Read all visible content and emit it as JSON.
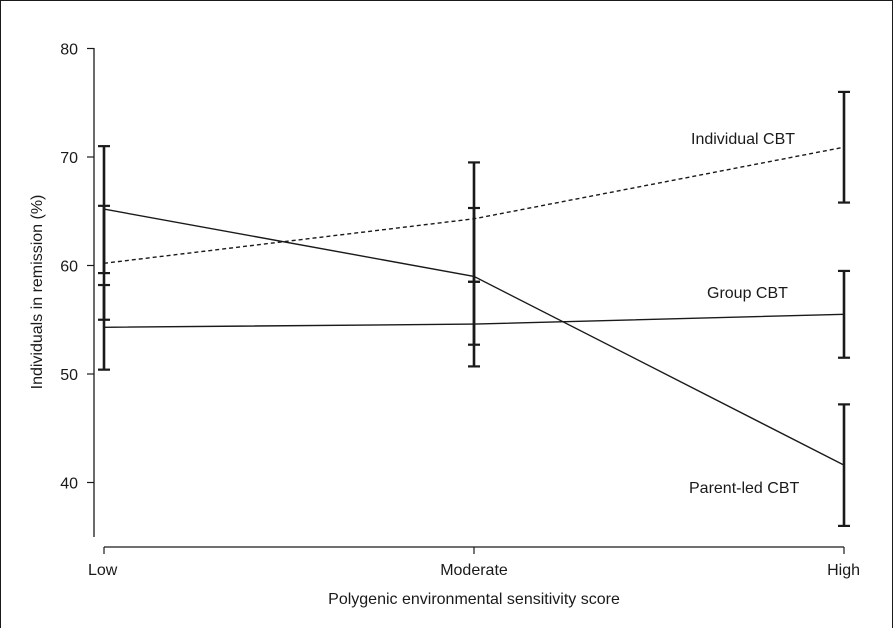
{
  "chart_data": {
    "type": "line",
    "xlabel": "Polygenic environmental sensitivity score",
    "ylabel": "Individuals in remission (%)",
    "categories": [
      "Low",
      "Moderate",
      "High"
    ],
    "ylim": [
      35,
      82
    ],
    "yticks": [
      40,
      50,
      60,
      70,
      80
    ],
    "grid": false,
    "series": [
      {
        "name": "Individual CBT",
        "style": "dashed",
        "values": [
          60.2,
          64.3,
          70.9
        ],
        "ci_low": [
          55.0,
          58.5,
          65.8
        ],
        "ci_high": [
          65.5,
          69.5,
          76.0
        ]
      },
      {
        "name": "Group CBT",
        "style": "solid",
        "values": [
          54.3,
          54.6,
          55.5
        ],
        "ci_low": [
          50.4,
          50.7,
          51.5
        ],
        "ci_high": [
          58.2,
          58.5,
          59.5
        ]
      },
      {
        "name": "Parent-led CBT",
        "style": "solid",
        "values": [
          65.2,
          59.0,
          41.6
        ],
        "ci_low": [
          59.3,
          52.7,
          36.0
        ],
        "ci_high": [
          71.0,
          65.3,
          47.2
        ]
      }
    ]
  },
  "colors": {
    "ink": "#1a1a1a",
    "background": "#ffffff"
  }
}
